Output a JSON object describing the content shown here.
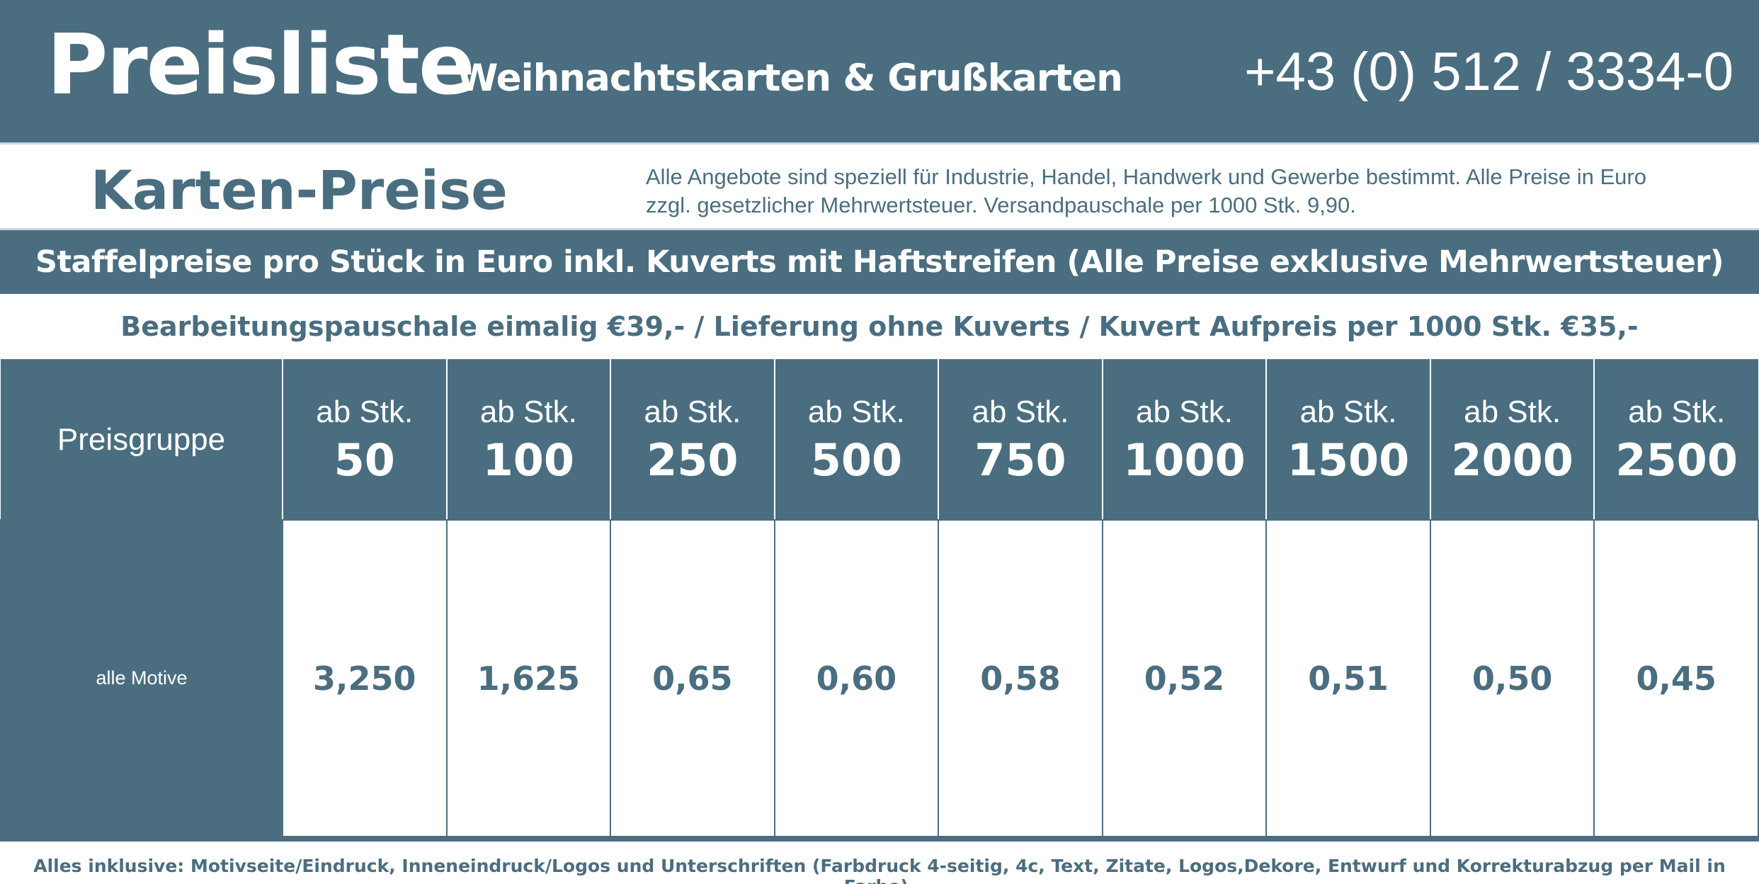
{
  "header": {
    "title": "Preisliste",
    "subtitle": "Weihnachtskarten & Grußkarten",
    "phone": "+43 (0) 512 / 3334-0"
  },
  "intro": {
    "heading": "Karten-Preise",
    "description": "Alle Angebote sind speziell für Industrie, Handel, Handwerk und Gewerbe bestimmt. Alle Preise in Euro zzgl. gesetzlicher Mehrwertsteuer. Versandpauschale per 1000 Stk. 9,90."
  },
  "staffel_banner": "Staffelpreise pro Stück in Euro inkl. Kuverts mit Haftstreifen (Alle Preise exklusive Mehrwertsteuer)",
  "fees_note": "Bearbeitungspauschale eimalig €39,- / Lieferung ohne Kuverts / Kuvert Aufpreis per 1000 Stk. €35,-",
  "table": {
    "group_header": "Preisgruppe",
    "qty_prefix": "ab Stk.",
    "quantities": [
      "50",
      "100",
      "250",
      "500",
      "750",
      "1000",
      "1500",
      "2000",
      "2500"
    ],
    "rows": [
      {
        "label": "alle Motive",
        "prices": [
          "3,250",
          "1,625",
          "0,65",
          "0,60",
          "0,58",
          "0,52",
          "0,51",
          "0,50",
          "0,45"
        ]
      }
    ]
  },
  "footer": "Alles inklusive: Motivseite/Eindruck, Inneneindruck/Logos und Unterschriften (Farbdruck 4-seitig, 4c, Text, Zitate, Logos,Dekore, Entwurf und Korrekturabzug per Mail in Farbe).",
  "colors": {
    "brand": "#4a6e80",
    "background": "#ffffff"
  }
}
